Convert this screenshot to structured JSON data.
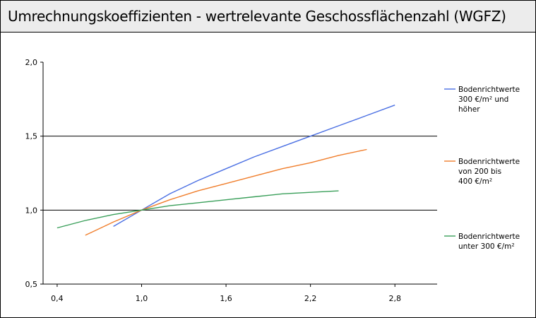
{
  "title": "Umrechnungskoeffizienten - wertrelevante Geschossflächenzahl (WGFZ)",
  "chart_data": {
    "type": "line",
    "title": "Umrechnungskoeffizienten - wertrelevante Geschossflächenzahl (WGFZ)",
    "xlabel": "",
    "ylabel": "",
    "xlim": [
      0.3,
      3.1
    ],
    "ylim": [
      0.5,
      2.0
    ],
    "x_ticks": [
      "0,4",
      "1,0",
      "1,6",
      "2,2",
      "2,8"
    ],
    "y_ticks": [
      "2,0",
      "1,5",
      "1,0",
      "0,5"
    ],
    "gridlines_y": [
      1.5,
      1.0
    ],
    "legend_position": "right",
    "series": [
      {
        "name": "Bodenrichtwerte 300 €/m² und höher",
        "legend_lines": [
          "Bodenrichtwerte",
          "300 €/m² und",
          "höher"
        ],
        "color": "#4a6fe3",
        "x": [
          0.8,
          1.0,
          1.2,
          1.4,
          1.6,
          1.8,
          2.0,
          2.2,
          2.4,
          2.6,
          2.8
        ],
        "y": [
          0.89,
          1.0,
          1.11,
          1.2,
          1.28,
          1.36,
          1.43,
          1.5,
          1.57,
          1.64,
          1.71
        ]
      },
      {
        "name": "Bodenrichtwerte von 200 bis 400 €/m²",
        "legend_lines": [
          "Bodenrichtwerte",
          "von 200 bis",
          "400 €/m²"
        ],
        "color": "#f07e2c",
        "x": [
          0.6,
          0.8,
          1.0,
          1.2,
          1.4,
          1.6,
          1.8,
          2.0,
          2.2,
          2.4,
          2.6
        ],
        "y": [
          0.83,
          0.92,
          1.0,
          1.07,
          1.13,
          1.18,
          1.23,
          1.28,
          1.32,
          1.37,
          1.41
        ]
      },
      {
        "name": "Bodenrichtwerte unter 300 €/m²",
        "legend_lines": [
          "Bodenrichtwerte",
          "unter 300 €/m²"
        ],
        "color": "#3a9f5a",
        "x": [
          0.4,
          0.6,
          0.8,
          1.0,
          1.2,
          1.4,
          1.6,
          1.8,
          2.0,
          2.2,
          2.4
        ],
        "y": [
          0.88,
          0.93,
          0.97,
          1.0,
          1.03,
          1.05,
          1.07,
          1.09,
          1.11,
          1.12,
          1.13
        ]
      }
    ]
  }
}
